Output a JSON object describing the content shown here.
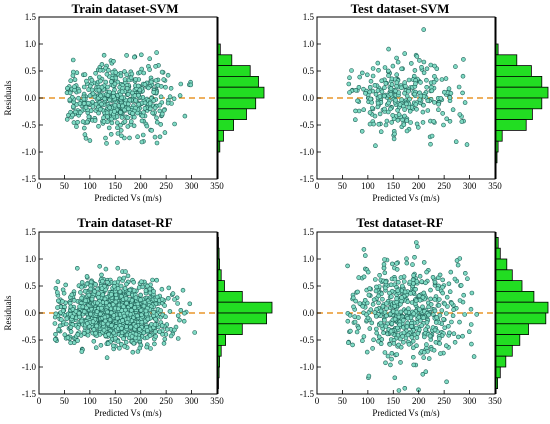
{
  "figure": {
    "background": "#ffffff",
    "point_fill": "#7fd9c3",
    "point_stroke": "#1d5f55",
    "zero_line_color": "#e8962a",
    "hist_fill": "#22dd22",
    "hist_stroke": "#000000"
  },
  "chart_data": [
    {
      "type": "scatter",
      "title": "Train dataset-SVM",
      "xlabel": "Predicted Vs (m/s)",
      "ylabel": "Residuals",
      "xlim": [
        0,
        350
      ],
      "ylim": [
        -1.5,
        1.5
      ],
      "xticks": [
        "0",
        "50",
        "100",
        "150",
        "200",
        "250",
        "300",
        "350"
      ],
      "yticks": [
        "-1.5",
        "-1.0",
        "-0.5",
        "0.0",
        "0.5",
        "1.0",
        "1.5"
      ],
      "reference_line": {
        "y": 0,
        "style": "dashed"
      },
      "points": {
        "n": 520,
        "x_range": [
          55,
          300
        ],
        "x_center": 160,
        "x_spread": 55,
        "residual_spread": 0.32,
        "residual_clip": 0.9,
        "seed": 11
      },
      "histogram": {
        "bins": [
          0.9,
          0.7,
          0.5,
          0.3,
          0.1,
          -0.1,
          -0.3,
          -0.5,
          -0.7,
          -0.9
        ],
        "counts": [
          5,
          30,
          70,
          88,
          100,
          82,
          62,
          34,
          12,
          4
        ]
      }
    },
    {
      "type": "scatter",
      "title": "Test dataset-SVM",
      "xlabel": "Predicted Vs (m/s)",
      "ylabel": "",
      "xlim": [
        0,
        350
      ],
      "ylim": [
        -1.5,
        1.5
      ],
      "xticks": [
        "0",
        "50",
        "100",
        "150",
        "200",
        "250",
        "300",
        "350"
      ],
      "yticks": [
        "-1.5",
        "-1.0",
        "-0.5",
        "0.0",
        "0.5",
        "1.0",
        "1.5"
      ],
      "reference_line": {
        "y": 0,
        "style": "dashed"
      },
      "points": {
        "n": 300,
        "x_range": [
          60,
          300
        ],
        "x_center": 165,
        "x_spread": 55,
        "residual_spread": 0.33,
        "residual_clip": 1.3,
        "seed": 29
      },
      "histogram": {
        "bins": [
          0.9,
          0.7,
          0.5,
          0.3,
          0.1,
          -0.1,
          -0.3,
          -0.5,
          -0.7,
          -0.9,
          -1.1
        ],
        "counts": [
          4,
          40,
          68,
          88,
          100,
          88,
          70,
          58,
          12,
          4,
          2
        ]
      }
    },
    {
      "type": "scatter",
      "title": "Train dataset-RF",
      "xlabel": "Predicted Vs (m/s)",
      "ylabel": "Residuals",
      "xlim": [
        0,
        350
      ],
      "ylim": [
        -1.5,
        1.5
      ],
      "xticks": [
        "0",
        "50",
        "100",
        "150",
        "200",
        "250",
        "300",
        "350"
      ],
      "yticks": [
        "-1.5",
        "-1.0",
        "-0.5",
        "0.0",
        "0.5",
        "1.0",
        "1.5"
      ],
      "reference_line": {
        "y": 0,
        "style": "dashed"
      },
      "points": {
        "n": 1300,
        "x_range": [
          30,
          320
        ],
        "x_center": 150,
        "x_spread": 50,
        "residual_spread": 0.28,
        "residual_clip": 1.45,
        "seed": 53
      },
      "histogram": {
        "bins": [
          1.3,
          1.1,
          0.9,
          0.7,
          0.5,
          0.3,
          0.1,
          -0.1,
          -0.3,
          -0.5,
          -0.7,
          -0.9,
          -1.1,
          -1.3
        ],
        "counts": [
          1,
          2,
          3,
          6,
          12,
          45,
          100,
          90,
          45,
          14,
          6,
          3,
          2,
          1
        ]
      }
    },
    {
      "type": "scatter",
      "title": "Test dataset-RF",
      "xlabel": "Predicted Vs (m/s)",
      "ylabel": "",
      "xlim": [
        0,
        350
      ],
      "ylim": [
        -1.5,
        1.5
      ],
      "xticks": [
        "0",
        "50",
        "100",
        "150",
        "200",
        "250",
        "300",
        "350"
      ],
      "yticks": [
        "-1.5",
        "-1.0",
        "-0.5",
        "0.0",
        "0.5",
        "1.0",
        "1.5"
      ],
      "reference_line": {
        "y": 0,
        "style": "dashed"
      },
      "points": {
        "n": 580,
        "x_range": [
          60,
          320
        ],
        "x_center": 175,
        "x_spread": 55,
        "residual_spread": 0.45,
        "residual_clip": 1.45,
        "seed": 71
      },
      "histogram": {
        "bins": [
          1.3,
          1.1,
          0.9,
          0.7,
          0.5,
          0.3,
          0.1,
          -0.1,
          -0.3,
          -0.5,
          -0.7,
          -0.9,
          -1.1,
          -1.3
        ],
        "counts": [
          4,
          8,
          20,
          30,
          48,
          70,
          96,
          92,
          60,
          44,
          30,
          18,
          8,
          3
        ]
      }
    }
  ]
}
